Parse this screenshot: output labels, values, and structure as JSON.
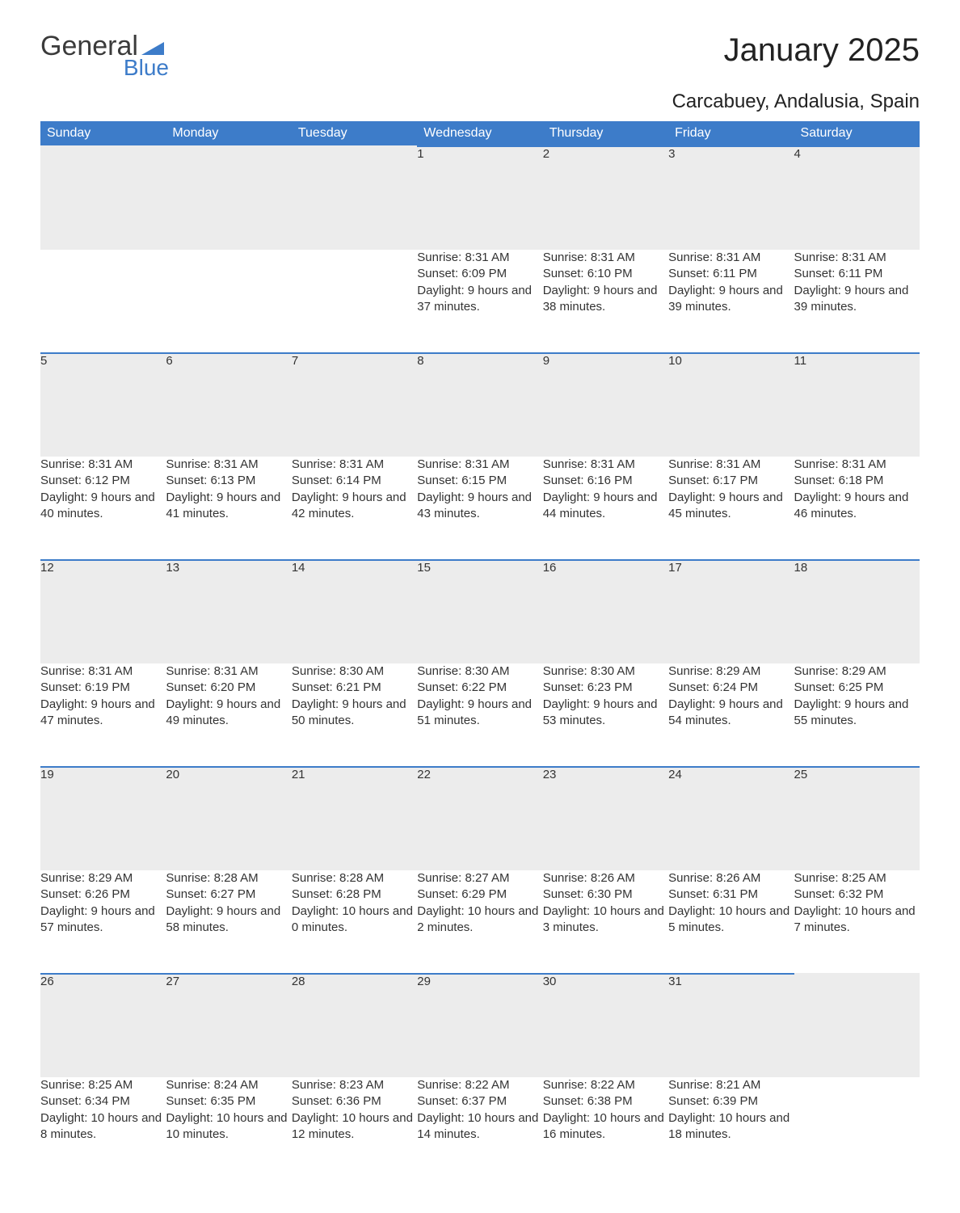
{
  "logo": {
    "word1": "General",
    "word2": "Blue"
  },
  "title": "January 2025",
  "location": "Carcabuey, Andalusia, Spain",
  "colors": {
    "header_bg": "#3d7cc9",
    "header_text": "#ffffff",
    "daynum_bg": "#ececec",
    "daynum_border": "#3d7cc9",
    "page_bg": "#ffffff",
    "text": "#333333",
    "logo_blue": "#3d7cc9",
    "logo_grey": "#3b3b3b"
  },
  "fonts": {
    "title_pt": 40,
    "location_pt": 24,
    "dayheader_pt": 16,
    "body_pt": 15
  },
  "dayHeaders": [
    "Sunday",
    "Monday",
    "Tuesday",
    "Wednesday",
    "Thursday",
    "Friday",
    "Saturday"
  ],
  "weeks": [
    {
      "nums": [
        "",
        "",
        "",
        "1",
        "2",
        "3",
        "4"
      ],
      "cells": [
        "",
        "",
        "",
        "Sunrise: 8:31 AM\nSunset: 6:09 PM\nDaylight: 9 hours and 37 minutes.",
        "Sunrise: 8:31 AM\nSunset: 6:10 PM\nDaylight: 9 hours and 38 minutes.",
        "Sunrise: 8:31 AM\nSunset: 6:11 PM\nDaylight: 9 hours and 39 minutes.",
        "Sunrise: 8:31 AM\nSunset: 6:11 PM\nDaylight: 9 hours and 39 minutes."
      ]
    },
    {
      "nums": [
        "5",
        "6",
        "7",
        "8",
        "9",
        "10",
        "11"
      ],
      "cells": [
        "Sunrise: 8:31 AM\nSunset: 6:12 PM\nDaylight: 9 hours and 40 minutes.",
        "Sunrise: 8:31 AM\nSunset: 6:13 PM\nDaylight: 9 hours and 41 minutes.",
        "Sunrise: 8:31 AM\nSunset: 6:14 PM\nDaylight: 9 hours and 42 minutes.",
        "Sunrise: 8:31 AM\nSunset: 6:15 PM\nDaylight: 9 hours and 43 minutes.",
        "Sunrise: 8:31 AM\nSunset: 6:16 PM\nDaylight: 9 hours and 44 minutes.",
        "Sunrise: 8:31 AM\nSunset: 6:17 PM\nDaylight: 9 hours and 45 minutes.",
        "Sunrise: 8:31 AM\nSunset: 6:18 PM\nDaylight: 9 hours and 46 minutes."
      ]
    },
    {
      "nums": [
        "12",
        "13",
        "14",
        "15",
        "16",
        "17",
        "18"
      ],
      "cells": [
        "Sunrise: 8:31 AM\nSunset: 6:19 PM\nDaylight: 9 hours and 47 minutes.",
        "Sunrise: 8:31 AM\nSunset: 6:20 PM\nDaylight: 9 hours and 49 minutes.",
        "Sunrise: 8:30 AM\nSunset: 6:21 PM\nDaylight: 9 hours and 50 minutes.",
        "Sunrise: 8:30 AM\nSunset: 6:22 PM\nDaylight: 9 hours and 51 minutes.",
        "Sunrise: 8:30 AM\nSunset: 6:23 PM\nDaylight: 9 hours and 53 minutes.",
        "Sunrise: 8:29 AM\nSunset: 6:24 PM\nDaylight: 9 hours and 54 minutes.",
        "Sunrise: 8:29 AM\nSunset: 6:25 PM\nDaylight: 9 hours and 55 minutes."
      ]
    },
    {
      "nums": [
        "19",
        "20",
        "21",
        "22",
        "23",
        "24",
        "25"
      ],
      "cells": [
        "Sunrise: 8:29 AM\nSunset: 6:26 PM\nDaylight: 9 hours and 57 minutes.",
        "Sunrise: 8:28 AM\nSunset: 6:27 PM\nDaylight: 9 hours and 58 minutes.",
        "Sunrise: 8:28 AM\nSunset: 6:28 PM\nDaylight: 10 hours and 0 minutes.",
        "Sunrise: 8:27 AM\nSunset: 6:29 PM\nDaylight: 10 hours and 2 minutes.",
        "Sunrise: 8:26 AM\nSunset: 6:30 PM\nDaylight: 10 hours and 3 minutes.",
        "Sunrise: 8:26 AM\nSunset: 6:31 PM\nDaylight: 10 hours and 5 minutes.",
        "Sunrise: 8:25 AM\nSunset: 6:32 PM\nDaylight: 10 hours and 7 minutes."
      ]
    },
    {
      "nums": [
        "26",
        "27",
        "28",
        "29",
        "30",
        "31",
        ""
      ],
      "cells": [
        "Sunrise: 8:25 AM\nSunset: 6:34 PM\nDaylight: 10 hours and 8 minutes.",
        "Sunrise: 8:24 AM\nSunset: 6:35 PM\nDaylight: 10 hours and 10 minutes.",
        "Sunrise: 8:23 AM\nSunset: 6:36 PM\nDaylight: 10 hours and 12 minutes.",
        "Sunrise: 8:22 AM\nSunset: 6:37 PM\nDaylight: 10 hours and 14 minutes.",
        "Sunrise: 8:22 AM\nSunset: 6:38 PM\nDaylight: 10 hours and 16 minutes.",
        "Sunrise: 8:21 AM\nSunset: 6:39 PM\nDaylight: 10 hours and 18 minutes.",
        ""
      ]
    }
  ]
}
